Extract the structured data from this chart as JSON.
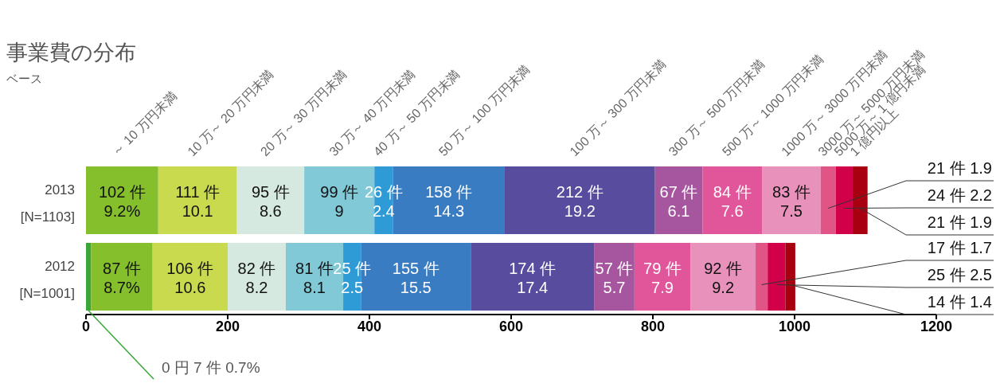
{
  "chart_data": {
    "type": "bar",
    "orientation": "horizontal",
    "stacked": true,
    "title": "事業費の分布",
    "subtitle": "ベース",
    "categories": [
      "2013\n[N=1103]",
      "2012\n[N=1001]"
    ],
    "xlim": [
      0,
      1200
    ],
    "xticks": [
      0,
      200,
      400,
      600,
      800,
      1000,
      1200
    ],
    "series": [
      {
        "name": "0 円",
        "color": "#3aa63a",
        "values": [
          null,
          7
        ],
        "value_labels": [
          null,
          "7 件 0.7%"
        ]
      },
      {
        "name": "～ 10 万円未満",
        "color": "#85bf2b",
        "values": [
          102,
          87
        ],
        "value_labels": [
          "102 件\n9.2%",
          "87 件\n8.7%"
        ]
      },
      {
        "name": "10 万～ 20 万円未満",
        "color": "#c9da4e",
        "values": [
          111,
          106
        ],
        "value_labels": [
          "111 件\n10.1",
          "106 件\n10.6"
        ]
      },
      {
        "name": "20 万～ 30 万円未満",
        "color": "#d5e9e0",
        "values": [
          95,
          82
        ],
        "value_labels": [
          "95 件\n8.6",
          "82 件\n8.2"
        ]
      },
      {
        "name": "30 万～ 40 万円未満",
        "color": "#82c9d8",
        "values": [
          99,
          81
        ],
        "value_labels": [
          "99 件\n9",
          "81 件\n8.1"
        ]
      },
      {
        "name": "40 万～ 50 万円未満",
        "color": "#2e9bd6",
        "values": [
          26,
          25
        ],
        "value_labels": [
          "26 件\n2.4",
          "25 件\n2.5"
        ]
      },
      {
        "name": "50 万～ 100 万円未満",
        "color": "#3a7cc2",
        "values": [
          158,
          155
        ],
        "value_labels": [
          "158 件\n14.3",
          "155 件\n15.5"
        ]
      },
      {
        "name": "100 万～ 300 万円未満",
        "color": "#574c9e",
        "values": [
          212,
          174
        ],
        "value_labels": [
          "212 件\n19.2",
          "174 件\n17.4"
        ]
      },
      {
        "name": "300 万～ 500 万円未満",
        "color": "#a5569e",
        "values": [
          67,
          57
        ],
        "value_labels": [
          "67 件\n6.1",
          "57 件\n5.7"
        ]
      },
      {
        "name": "500 万～ 1000 万円未満",
        "color": "#e1559a",
        "values": [
          84,
          79
        ],
        "value_labels": [
          "84 件\n7.6",
          "79 件\n7.9"
        ]
      },
      {
        "name": "1000 万～ 3000 万円未満",
        "color": "#e891bb",
        "values": [
          83,
          92
        ],
        "value_labels": [
          "83 件\n7.5",
          "92 件\n9.2"
        ]
      },
      {
        "name": "3000 万～ 5000 万円未満",
        "color": "#e05585",
        "values": [
          21,
          17
        ],
        "value_labels": [
          "21 件 1.9",
          "17 件 1.7"
        ]
      },
      {
        "name": "5000 万～ 1 億円未満",
        "color": "#d20048",
        "values": [
          24,
          25
        ],
        "value_labels": [
          "24 件 2.2",
          "25 件 2.5"
        ]
      },
      {
        "name": "1 億円以上",
        "color": "#a80010",
        "values": [
          21,
          14
        ],
        "value_labels": [
          "21 件 1.9",
          "14 件 1.4"
        ]
      }
    ]
  }
}
